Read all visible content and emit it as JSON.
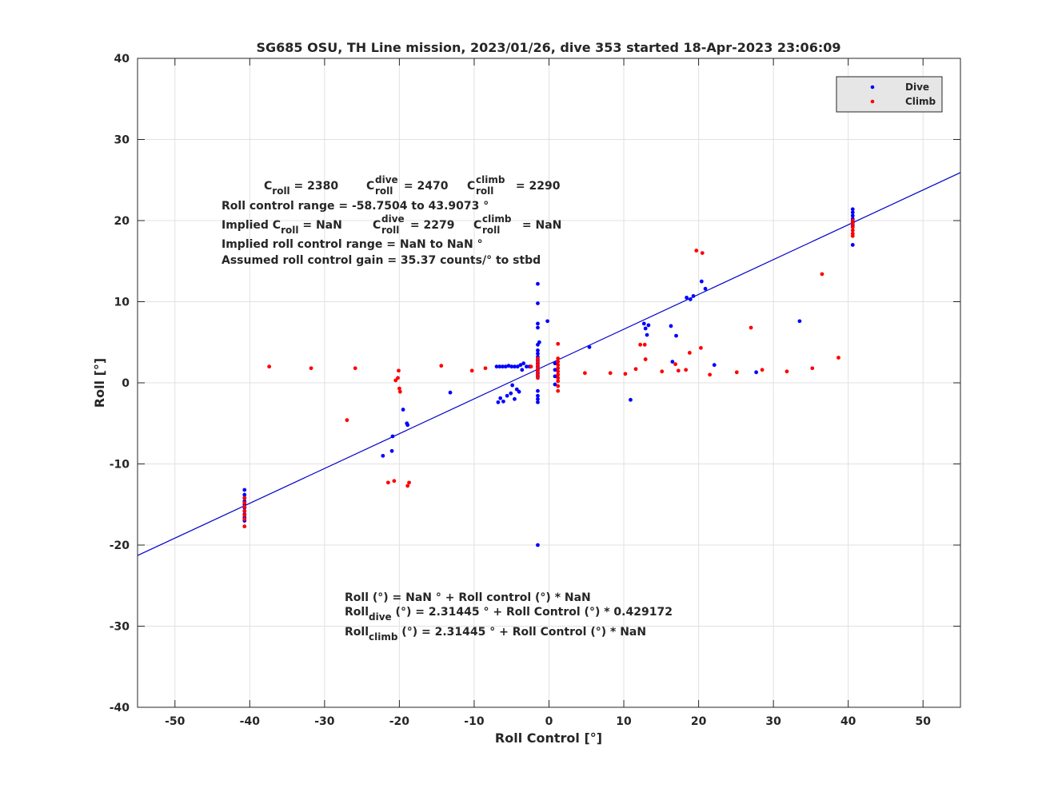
{
  "colors": {
    "dive": "#0000ff",
    "climb": "#ff0000",
    "fit_line": "#0000cc",
    "axes": "#262626",
    "grid": "#e1e1e1",
    "legend_bg": "#e6e6e6"
  },
  "chart_data": {
    "type": "scatter",
    "title": "SG685 OSU, TH Line mission, 2023/01/26, dive 353 started 18-Apr-2023 23:06:09",
    "xlabel": "Roll Control [°]",
    "ylabel": "Roll [°]",
    "xlim": [
      -55,
      55
    ],
    "ylim": [
      -40,
      40
    ],
    "x_ticks": [
      -50,
      -40,
      -30,
      -20,
      -10,
      0,
      10,
      20,
      30,
      40,
      50
    ],
    "y_ticks": [
      -40,
      -30,
      -20,
      -10,
      0,
      10,
      20,
      30,
      40
    ],
    "grid": true,
    "legend": {
      "placement": "top-right",
      "entries": [
        "Dive",
        "Climb"
      ]
    },
    "series": [
      {
        "name": "Dive",
        "color": "#0000ff",
        "points": [
          [
            -40.7,
            -13.2
          ],
          [
            -40.7,
            -13.8
          ],
          [
            -40.7,
            -14.2
          ],
          [
            -40.7,
            -14.6
          ],
          [
            -40.7,
            -15.0
          ],
          [
            -40.7,
            -15.4
          ],
          [
            -40.7,
            -15.8
          ],
          [
            -40.7,
            -16.2
          ],
          [
            -40.7,
            -16.6
          ],
          [
            -40.7,
            -17.0
          ],
          [
            -22.2,
            -9.0
          ],
          [
            -21.0,
            -8.4
          ],
          [
            -20.9,
            -6.6
          ],
          [
            -19.5,
            -3.3
          ],
          [
            -19.0,
            -5.0
          ],
          [
            -18.9,
            -5.2
          ],
          [
            -13.2,
            -1.2
          ],
          [
            -7.0,
            2.0
          ],
          [
            -6.6,
            2.0
          ],
          [
            -6.2,
            2.0
          ],
          [
            -5.8,
            2.0
          ],
          [
            -5.4,
            2.1
          ],
          [
            -5.0,
            2.0
          ],
          [
            -4.6,
            2.0
          ],
          [
            -4.2,
            2.0
          ],
          [
            -3.8,
            2.2
          ],
          [
            -3.6,
            1.6
          ],
          [
            -3.4,
            2.4
          ],
          [
            -3.0,
            2.0
          ],
          [
            -2.6,
            2.0
          ],
          [
            -6.8,
            -2.4
          ],
          [
            -6.5,
            -1.9
          ],
          [
            -6.1,
            -2.3
          ],
          [
            -5.6,
            -1.6
          ],
          [
            -5.1,
            -1.3
          ],
          [
            -4.9,
            -0.3
          ],
          [
            -4.6,
            -2.0
          ],
          [
            -4.3,
            -0.8
          ],
          [
            -4.0,
            -1.1
          ],
          [
            -1.5,
            12.2
          ],
          [
            -1.5,
            9.8
          ],
          [
            -1.5,
            7.3
          ],
          [
            -1.5,
            6.8
          ],
          [
            -1.5,
            4.7
          ],
          [
            -1.3,
            5.0
          ],
          [
            -1.5,
            4.0
          ],
          [
            -1.5,
            3.6
          ],
          [
            -1.5,
            3.2
          ],
          [
            -1.5,
            2.8
          ],
          [
            -1.5,
            2.4
          ],
          [
            -1.5,
            2.0
          ],
          [
            -1.5,
            1.6
          ],
          [
            -1.5,
            1.2
          ],
          [
            -1.5,
            0.8
          ],
          [
            -1.5,
            -1.0
          ],
          [
            -1.5,
            -1.6
          ],
          [
            -1.5,
            -2.0
          ],
          [
            -1.5,
            -2.4
          ],
          [
            -1.5,
            -20.0
          ],
          [
            -0.2,
            7.6
          ],
          [
            0.8,
            2.4
          ],
          [
            0.8,
            1.6
          ],
          [
            0.8,
            0.8
          ],
          [
            0.8,
            -0.2
          ],
          [
            5.4,
            4.4
          ],
          [
            10.9,
            -2.1
          ],
          [
            12.7,
            7.3
          ],
          [
            12.9,
            6.7
          ],
          [
            13.1,
            5.9
          ],
          [
            13.3,
            7.1
          ],
          [
            16.3,
            7.0
          ],
          [
            16.5,
            2.6
          ],
          [
            17.0,
            5.8
          ],
          [
            18.4,
            10.5
          ],
          [
            18.9,
            10.3
          ],
          [
            19.3,
            10.7
          ],
          [
            20.4,
            12.5
          ],
          [
            20.9,
            11.6
          ],
          [
            22.1,
            2.2
          ],
          [
            27.7,
            1.3
          ],
          [
            33.5,
            7.6
          ],
          [
            40.6,
            21.4
          ],
          [
            40.6,
            21.0
          ],
          [
            40.6,
            20.6
          ],
          [
            40.6,
            20.2
          ],
          [
            40.6,
            19.8
          ],
          [
            40.6,
            19.4
          ],
          [
            40.6,
            17.0
          ]
        ]
      },
      {
        "name": "Climb",
        "color": "#ff0000",
        "points": [
          [
            -40.7,
            -14.2
          ],
          [
            -40.7,
            -14.8
          ],
          [
            -40.7,
            -15.3
          ],
          [
            -40.7,
            -15.8
          ],
          [
            -40.7,
            -16.3
          ],
          [
            -40.7,
            -16.8
          ],
          [
            -40.7,
            -17.7
          ],
          [
            -37.4,
            2.0
          ],
          [
            -31.8,
            1.8
          ],
          [
            -27.0,
            -4.6
          ],
          [
            -25.9,
            1.8
          ],
          [
            -21.5,
            -12.3
          ],
          [
            -20.7,
            -12.1
          ],
          [
            -20.5,
            0.3
          ],
          [
            -20.2,
            0.6
          ],
          [
            -20.1,
            1.5
          ],
          [
            -20.0,
            -0.7
          ],
          [
            -19.9,
            -1.1
          ],
          [
            -18.9,
            -12.7
          ],
          [
            -18.7,
            -12.3
          ],
          [
            -14.4,
            2.1
          ],
          [
            -10.3,
            1.5
          ],
          [
            -8.5,
            1.8
          ],
          [
            -2.4,
            2.0
          ],
          [
            -1.5,
            3.0
          ],
          [
            -1.5,
            2.6
          ],
          [
            -1.5,
            2.2
          ],
          [
            -1.5,
            1.8
          ],
          [
            -1.5,
            1.4
          ],
          [
            -1.5,
            1.0
          ],
          [
            -1.5,
            0.6
          ],
          [
            1.2,
            4.8
          ],
          [
            1.2,
            3.0
          ],
          [
            1.2,
            2.6
          ],
          [
            1.2,
            2.2
          ],
          [
            1.2,
            1.8
          ],
          [
            1.2,
            1.4
          ],
          [
            1.2,
            1.0
          ],
          [
            1.2,
            0.6
          ],
          [
            1.2,
            0.2
          ],
          [
            1.2,
            -0.4
          ],
          [
            1.2,
            -1.0
          ],
          [
            4.8,
            1.2
          ],
          [
            8.2,
            1.2
          ],
          [
            10.2,
            1.1
          ],
          [
            11.6,
            1.7
          ],
          [
            12.2,
            4.7
          ],
          [
            12.8,
            4.7
          ],
          [
            12.9,
            2.9
          ],
          [
            15.1,
            1.4
          ],
          [
            16.9,
            2.3
          ],
          [
            17.3,
            1.5
          ],
          [
            18.3,
            1.6
          ],
          [
            18.8,
            3.7
          ],
          [
            19.7,
            16.3
          ],
          [
            20.3,
            4.3
          ],
          [
            20.5,
            16.0
          ],
          [
            21.5,
            1.0
          ],
          [
            25.1,
            1.3
          ],
          [
            27.0,
            6.8
          ],
          [
            28.5,
            1.6
          ],
          [
            31.8,
            1.4
          ],
          [
            35.2,
            1.8
          ],
          [
            36.5,
            13.4
          ],
          [
            38.7,
            3.1
          ],
          [
            40.6,
            20.0
          ],
          [
            40.6,
            19.6
          ],
          [
            40.6,
            19.2
          ],
          [
            40.6,
            18.8
          ],
          [
            40.6,
            18.4
          ],
          [
            40.6,
            18.1
          ]
        ]
      }
    ],
    "fit_line": {
      "intercept": 2.31445,
      "slope": 0.429172,
      "x_range": [
        -55,
        55
      ]
    },
    "annotations": {
      "c_roll_line": "C_roll = 2380     C_roll^dive = 2470     C_roll^climb = 2290",
      "roll_range": "Roll control range = -58.7504 to 43.9073 °",
      "implied_c_roll_line": "Implied C_roll =  NaN     C_roll^dive = 2279     C_roll^climb =  NaN",
      "implied_range": "Implied roll control range = NaN to NaN °",
      "gain": "Assumed roll control gain = 35.37 counts/° to stbd",
      "eq_roll": "Roll (°) = NaN ° + Roll control (°) * NaN",
      "eq_dive": "Roll_dive (°) = 2.31445 ° + Roll Control (°) * 0.429172",
      "eq_climb": "Roll_climb (°) = 2.31445 ° + Roll Control (°) * NaN"
    }
  },
  "text": {
    "c": "C",
    "roll_sub": "roll",
    "dive_sup": "dive",
    "climb_sup": "climb",
    "c_roll_val": " = 2380",
    "c_dive_val": " = 2470",
    "c_climb_val": " = 2290",
    "roll_range": "Roll control range = -58.7504 to 43.9073 °",
    "implied_prefix": "Implied C",
    "implied_c_val": " =  NaN",
    "implied_dive_val": " = 2279",
    "implied_climb_val": " =  NaN",
    "implied_range": "Implied roll control range = NaN to NaN °",
    "gain": "Assumed roll control gain = 35.37 counts/° to stbd",
    "eq_roll": "Roll (°) = NaN ° + Roll control (°) * NaN",
    "eq_word": "Roll",
    "eq_dive_sub": "dive",
    "eq_dive_rest": " (°) = 2.31445 ° + Roll Control (°) * 0.429172",
    "eq_climb_sub": "climb",
    "eq_climb_rest": " (°) = 2.31445 ° + Roll Control (°) * NaN"
  }
}
